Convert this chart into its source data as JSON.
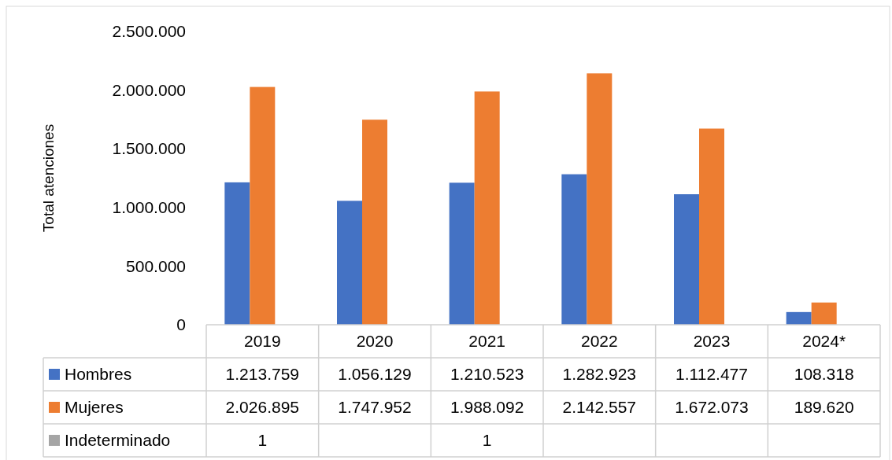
{
  "chart_data": {
    "type": "bar",
    "ylabel": "Total atenciones",
    "categories": [
      "2019",
      "2020",
      "2021",
      "2022",
      "2023",
      "2024*"
    ],
    "series": [
      {
        "name": "Hombres",
        "color": "#4472c4",
        "values": [
          1213759,
          1056129,
          1210523,
          1282923,
          1112477,
          108318
        ],
        "value_labels": [
          "1.213.759",
          "1.056.129",
          "1.210.523",
          "1.282.923",
          "1.112.477",
          "108.318"
        ]
      },
      {
        "name": "Mujeres",
        "color": "#ed7d31",
        "values": [
          2026895,
          1747952,
          1988092,
          2142557,
          1672073,
          189620
        ],
        "value_labels": [
          "2.026.895",
          "1.747.952",
          "1.988.092",
          "2.142.557",
          "1.672.073",
          "189.620"
        ]
      },
      {
        "name": "Indeterminado",
        "color": "#a5a5a5",
        "values": [
          1,
          null,
          1,
          null,
          null,
          null
        ],
        "value_labels": [
          "1",
          null,
          "1",
          null,
          null,
          null
        ]
      }
    ],
    "ylim": [
      0,
      2500000
    ],
    "yticks": [
      {
        "value": 0,
        "label": "0"
      },
      {
        "value": 500000,
        "label": "500.000"
      },
      {
        "value": 1000000,
        "label": "1.000.000"
      },
      {
        "value": 1500000,
        "label": "1.500.000"
      },
      {
        "value": 2000000,
        "label": "2.000.000"
      },
      {
        "value": 2500000,
        "label": "2.500.000"
      }
    ],
    "grid": false,
    "legend": "bottom"
  }
}
